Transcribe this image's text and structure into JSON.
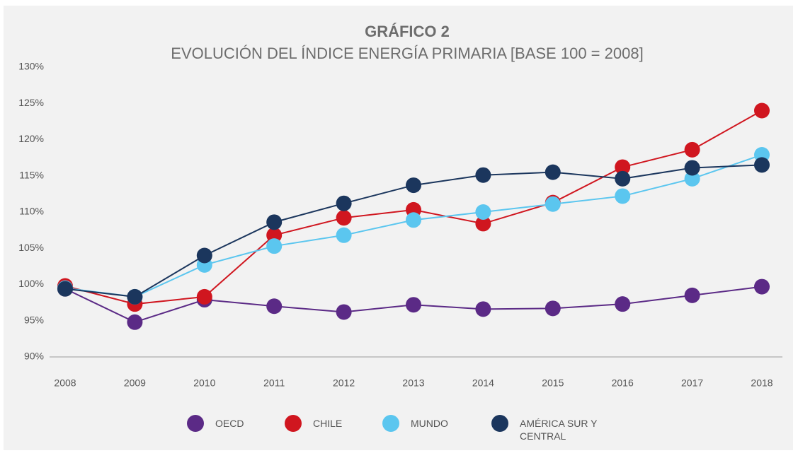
{
  "chart_data": {
    "type": "line",
    "title": "GRÁFICO 2",
    "subtitle": "EVOLUCIÓN DEL ÍNDICE ENERGÍA PRIMARIA [BASE 100 = 2008]",
    "categories": [
      "2008",
      "2009",
      "2010",
      "2011",
      "2012",
      "2013",
      "2014",
      "2015",
      "2016",
      "2017",
      "2018"
    ],
    "series": [
      {
        "name": "OECD",
        "color": "#5b2a86",
        "values": [
          99.4,
          94.8,
          97.9,
          97.0,
          96.2,
          97.2,
          96.6,
          96.7,
          97.3,
          98.5,
          99.7
        ]
      },
      {
        "name": "CHILE",
        "color": "#d0161f",
        "values": [
          99.8,
          97.3,
          98.3,
          106.8,
          109.2,
          110.3,
          108.4,
          111.3,
          116.2,
          118.6,
          124.0
        ]
      },
      {
        "name": "MUNDO",
        "color": "#5bc6ef",
        "values": [
          99.5,
          98.3,
          102.7,
          105.3,
          106.8,
          108.9,
          110.0,
          111.1,
          112.2,
          114.6,
          117.9
        ]
      },
      {
        "name": "AMÉRICA SUR Y CENTRAL",
        "color": "#1b365d",
        "values": [
          99.4,
          98.3,
          104.0,
          108.6,
          111.2,
          113.7,
          115.1,
          115.5,
          114.6,
          116.1,
          116.5
        ]
      }
    ],
    "ylim": [
      90,
      130
    ],
    "yticks": [
      {
        "value": 90,
        "label": "90%"
      },
      {
        "value": 95,
        "label": "95%"
      },
      {
        "value": 100,
        "label": "100%"
      },
      {
        "value": 105,
        "label": "105%"
      },
      {
        "value": 110,
        "label": "110%"
      },
      {
        "value": 115,
        "label": "115%"
      },
      {
        "value": 120,
        "label": "120%"
      },
      {
        "value": 125,
        "label": "125%"
      },
      {
        "value": 130,
        "label": "130%"
      }
    ]
  }
}
